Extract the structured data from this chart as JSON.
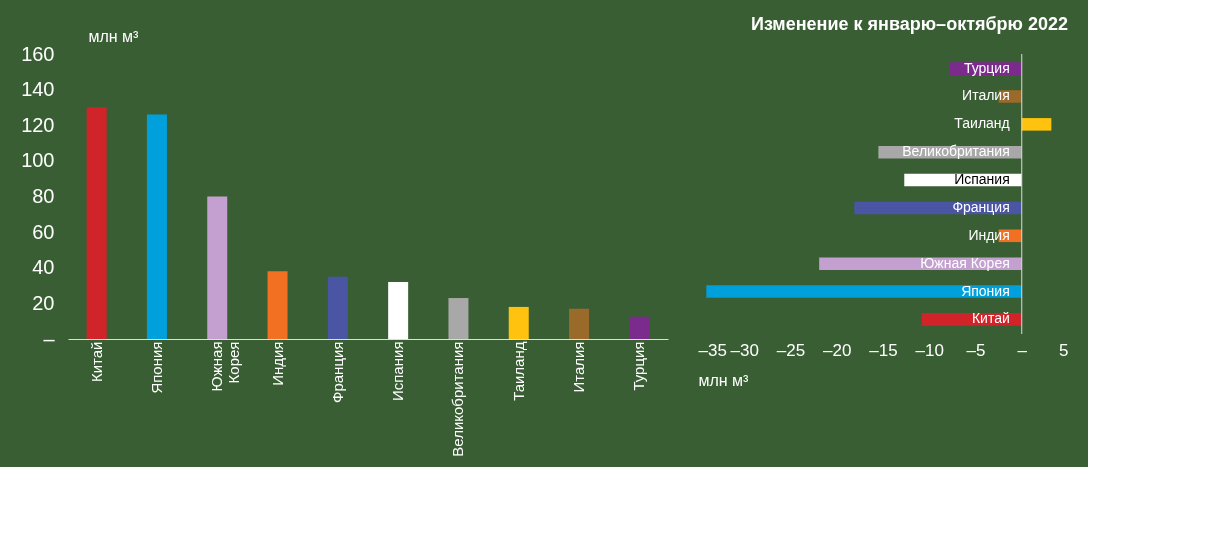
{
  "chart_data": [
    {
      "type": "bar",
      "ylabel": "млн м³",
      "categories": [
        "Китай",
        "Япония",
        "Южная Корея",
        "Индия",
        "Франция",
        "Испания",
        "Великобритания",
        "Таиланд",
        "Италия",
        "Турция"
      ],
      "values": [
        130,
        126,
        80,
        38,
        35,
        32,
        23,
        18,
        17,
        12.5
      ],
      "colors": [
        "#d0232a",
        "#00a0dc",
        "#c3a0cf",
        "#f27021",
        "#4a55a3",
        "#ffffff",
        "#a8a8a8",
        "#ffc20e",
        "#9a6a2a",
        "#7b2b8c"
      ],
      "ylim": [
        0,
        160
      ],
      "yticks": [
        {
          "value": 0,
          "label": "–"
        },
        20,
        40,
        60,
        80,
        100,
        120,
        140,
        160
      ],
      "grid": false
    },
    {
      "type": "bar",
      "orientation": "horizontal",
      "title": "Изменение к январю–октябрю 2022",
      "xlabel": "млн м³",
      "categories": [
        "Турция",
        "Италия",
        "Таиланд",
        "Великобритания",
        "Испания",
        "Франция",
        "Индия",
        "Южная Корея",
        "Япония",
        "Китай"
      ],
      "values": [
        -7.8,
        -2.5,
        3.2,
        -15.5,
        -12.7,
        -18.1,
        -2.5,
        -21.9,
        -34.1,
        -10.8
      ],
      "colors": [
        "#7b2b8c",
        "#9a6a2a",
        "#ffc20e",
        "#a8a8a8",
        "#ffffff",
        "#4a55a3",
        "#f27021",
        "#c3a0cf",
        "#00a0dc",
        "#d0232a"
      ],
      "xlim": [
        -35,
        5
      ],
      "xticks": [
        {
          "value": -35,
          "label": "–35"
        },
        {
          "value": -30,
          "label": "–30"
        },
        {
          "value": -25,
          "label": "–25"
        },
        {
          "value": -20,
          "label": "–20"
        },
        {
          "value": -15,
          "label": "–15"
        },
        {
          "value": -10,
          "label": "–10"
        },
        {
          "value": -5,
          "label": "–5"
        },
        {
          "value": 0,
          "label": "–"
        },
        5
      ],
      "grid": false
    }
  ]
}
